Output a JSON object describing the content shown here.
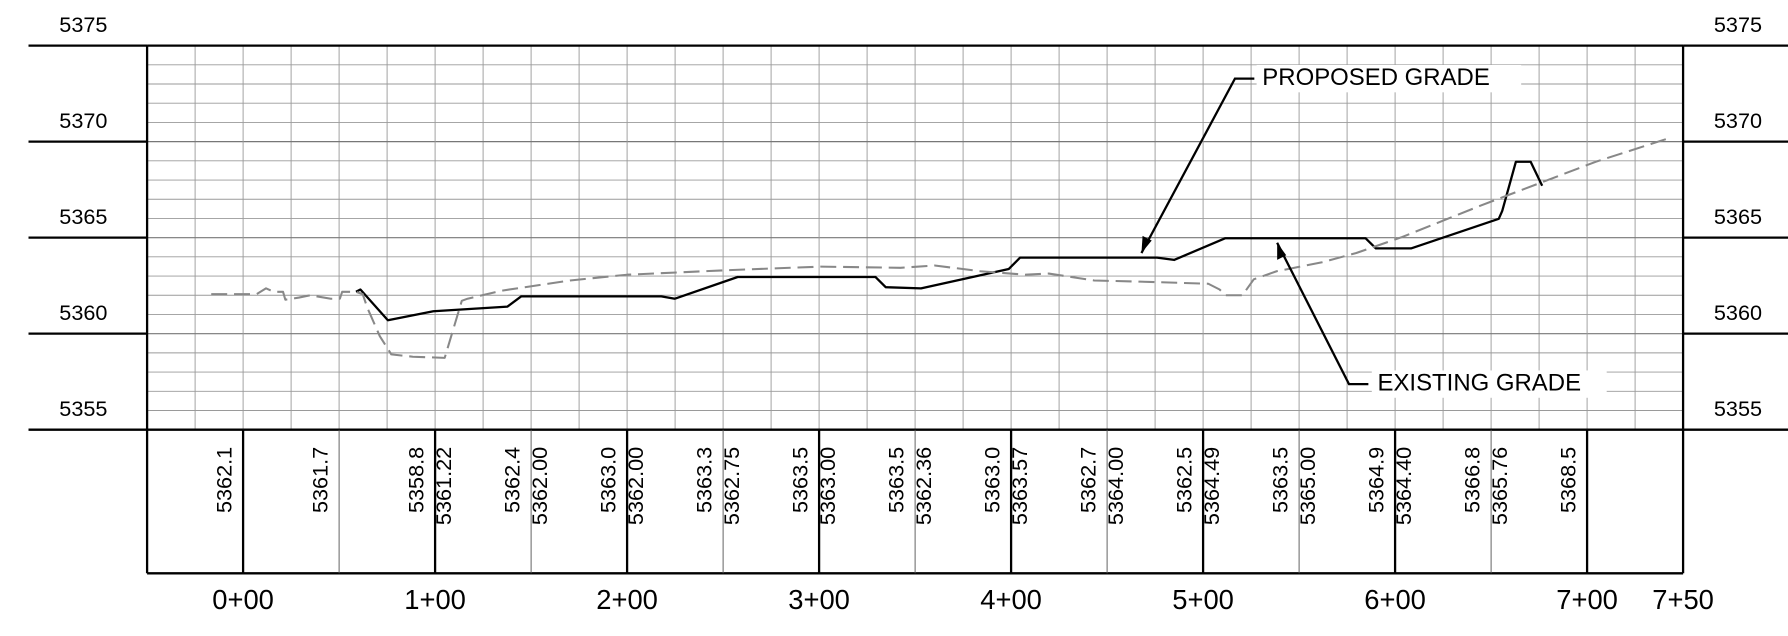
{
  "chart_data": {
    "type": "line",
    "xlim": [
      -50,
      750
    ],
    "ylim": [
      5355,
      5375
    ],
    "xticks": [
      {
        "value": 0,
        "label": "0+00"
      },
      {
        "value": 100,
        "label": "1+00"
      },
      {
        "value": 200,
        "label": "2+00"
      },
      {
        "value": 300,
        "label": "3+00"
      },
      {
        "value": 400,
        "label": "4+00"
      },
      {
        "value": 500,
        "label": "5+00"
      },
      {
        "value": 600,
        "label": "6+00"
      },
      {
        "value": 700,
        "label": "7+00"
      },
      {
        "value": 750,
        "label": "7+50"
      }
    ],
    "yticks": [
      5355,
      5360,
      5365,
      5370,
      5375
    ],
    "xminorticks": [
      -25,
      25,
      50,
      75,
      125,
      150,
      175,
      225,
      250,
      275,
      325,
      350,
      375,
      425,
      450,
      475,
      525,
      550,
      575,
      625,
      650,
      675,
      725
    ],
    "yminorticks": [
      5356,
      5357,
      5358,
      5359,
      5361,
      5362,
      5363,
      5364,
      5366,
      5367,
      5368,
      5369,
      5371,
      5372,
      5373,
      5374
    ],
    "grid": true,
    "series": [
      {
        "name": "PROPOSED GRADE",
        "color": "#000000",
        "dashed": false,
        "x": [
          58.8,
          61.1,
          75.4,
          99.1,
          137.7,
          144.8,
          217.8,
          224.9,
          257.6,
          329.4,
          334.7,
          353.1,
          398.8,
          404.7,
          476.0,
          484.9,
          511.6,
          584.6,
          590.0,
          608.3,
          654.0,
          655.8,
          662.9,
          670.6,
          676.6
        ],
        "values": [
          5362.18,
          5362.3,
          5360.7,
          5361.17,
          5361.41,
          5361.94,
          5361.94,
          5361.82,
          5362.95,
          5362.95,
          5362.42,
          5362.36,
          5363.37,
          5363.96,
          5363.96,
          5363.84,
          5364.97,
          5364.97,
          5364.44,
          5364.44,
          5365.98,
          5366.39,
          5368.95,
          5368.95,
          5367.7
        ]
      },
      {
        "name": "EXISTING GRADE",
        "color": "#888888",
        "dashed": true,
        "x": [
          -16.6,
          7.1,
          11.9,
          16.0,
          20.8,
          22.0,
          29.1,
          35.0,
          45.7,
          50.4,
          51.6,
          58.8,
          62.3,
          64.7,
          71.2,
          77.2,
          88.4,
          105.0,
          113.9,
          116.9,
          134.7,
          170.3,
          200.0,
          253.4,
          300.9,
          342.4,
          360.2,
          384.0,
          407.7,
          419.6,
          443.3,
          467.1,
          502.7,
          508.6,
          511.6,
          520.5,
          526.4,
          538.3,
          562.0,
          579.8,
          603.6,
          645.1,
          704.5,
          743.0
        ],
        "values": [
          5362.06,
          5362.06,
          5362.36,
          5362.18,
          5362.18,
          5361.77,
          5361.88,
          5362.0,
          5361.82,
          5361.82,
          5362.18,
          5362.18,
          5362.06,
          5361.35,
          5359.87,
          5358.92,
          5358.8,
          5358.74,
          5361.71,
          5361.82,
          5362.24,
          5362.77,
          5363.07,
          5363.31,
          5363.49,
          5363.43,
          5363.55,
          5363.25,
          5363.07,
          5363.13,
          5362.77,
          5362.71,
          5362.6,
          5362.3,
          5362.0,
          5362.0,
          5362.83,
          5363.25,
          5363.72,
          5364.2,
          5365.03,
          5366.69,
          5368.95,
          5370.19
        ]
      }
    ],
    "profile_labels": [
      {
        "station": 0,
        "existing": "5362.1"
      },
      {
        "station": 50,
        "existing": "5361.7"
      },
      {
        "station": 100,
        "existing": "5358.8",
        "proposed": "5361.22"
      },
      {
        "station": 150,
        "existing": "5362.4",
        "proposed": "5362.00"
      },
      {
        "station": 200,
        "existing": "5363.0",
        "proposed": "5362.00"
      },
      {
        "station": 250,
        "existing": "5363.3",
        "proposed": "5362.75"
      },
      {
        "station": 300,
        "existing": "5363.5",
        "proposed": "5363.00"
      },
      {
        "station": 350,
        "existing": "5363.5",
        "proposed": "5362.36"
      },
      {
        "station": 400,
        "existing": "5363.0",
        "proposed": "5363.57"
      },
      {
        "station": 450,
        "existing": "5362.7",
        "proposed": "5364.00"
      },
      {
        "station": 500,
        "existing": "5362.5",
        "proposed": "5364.49"
      },
      {
        "station": 550,
        "existing": "5363.5",
        "proposed": "5365.00"
      },
      {
        "station": 600,
        "existing": "5364.9",
        "proposed": "5364.40"
      },
      {
        "station": 650,
        "existing": "5366.8",
        "proposed": "5365.76"
      },
      {
        "station": 700,
        "existing": "5368.5"
      }
    ]
  }
}
